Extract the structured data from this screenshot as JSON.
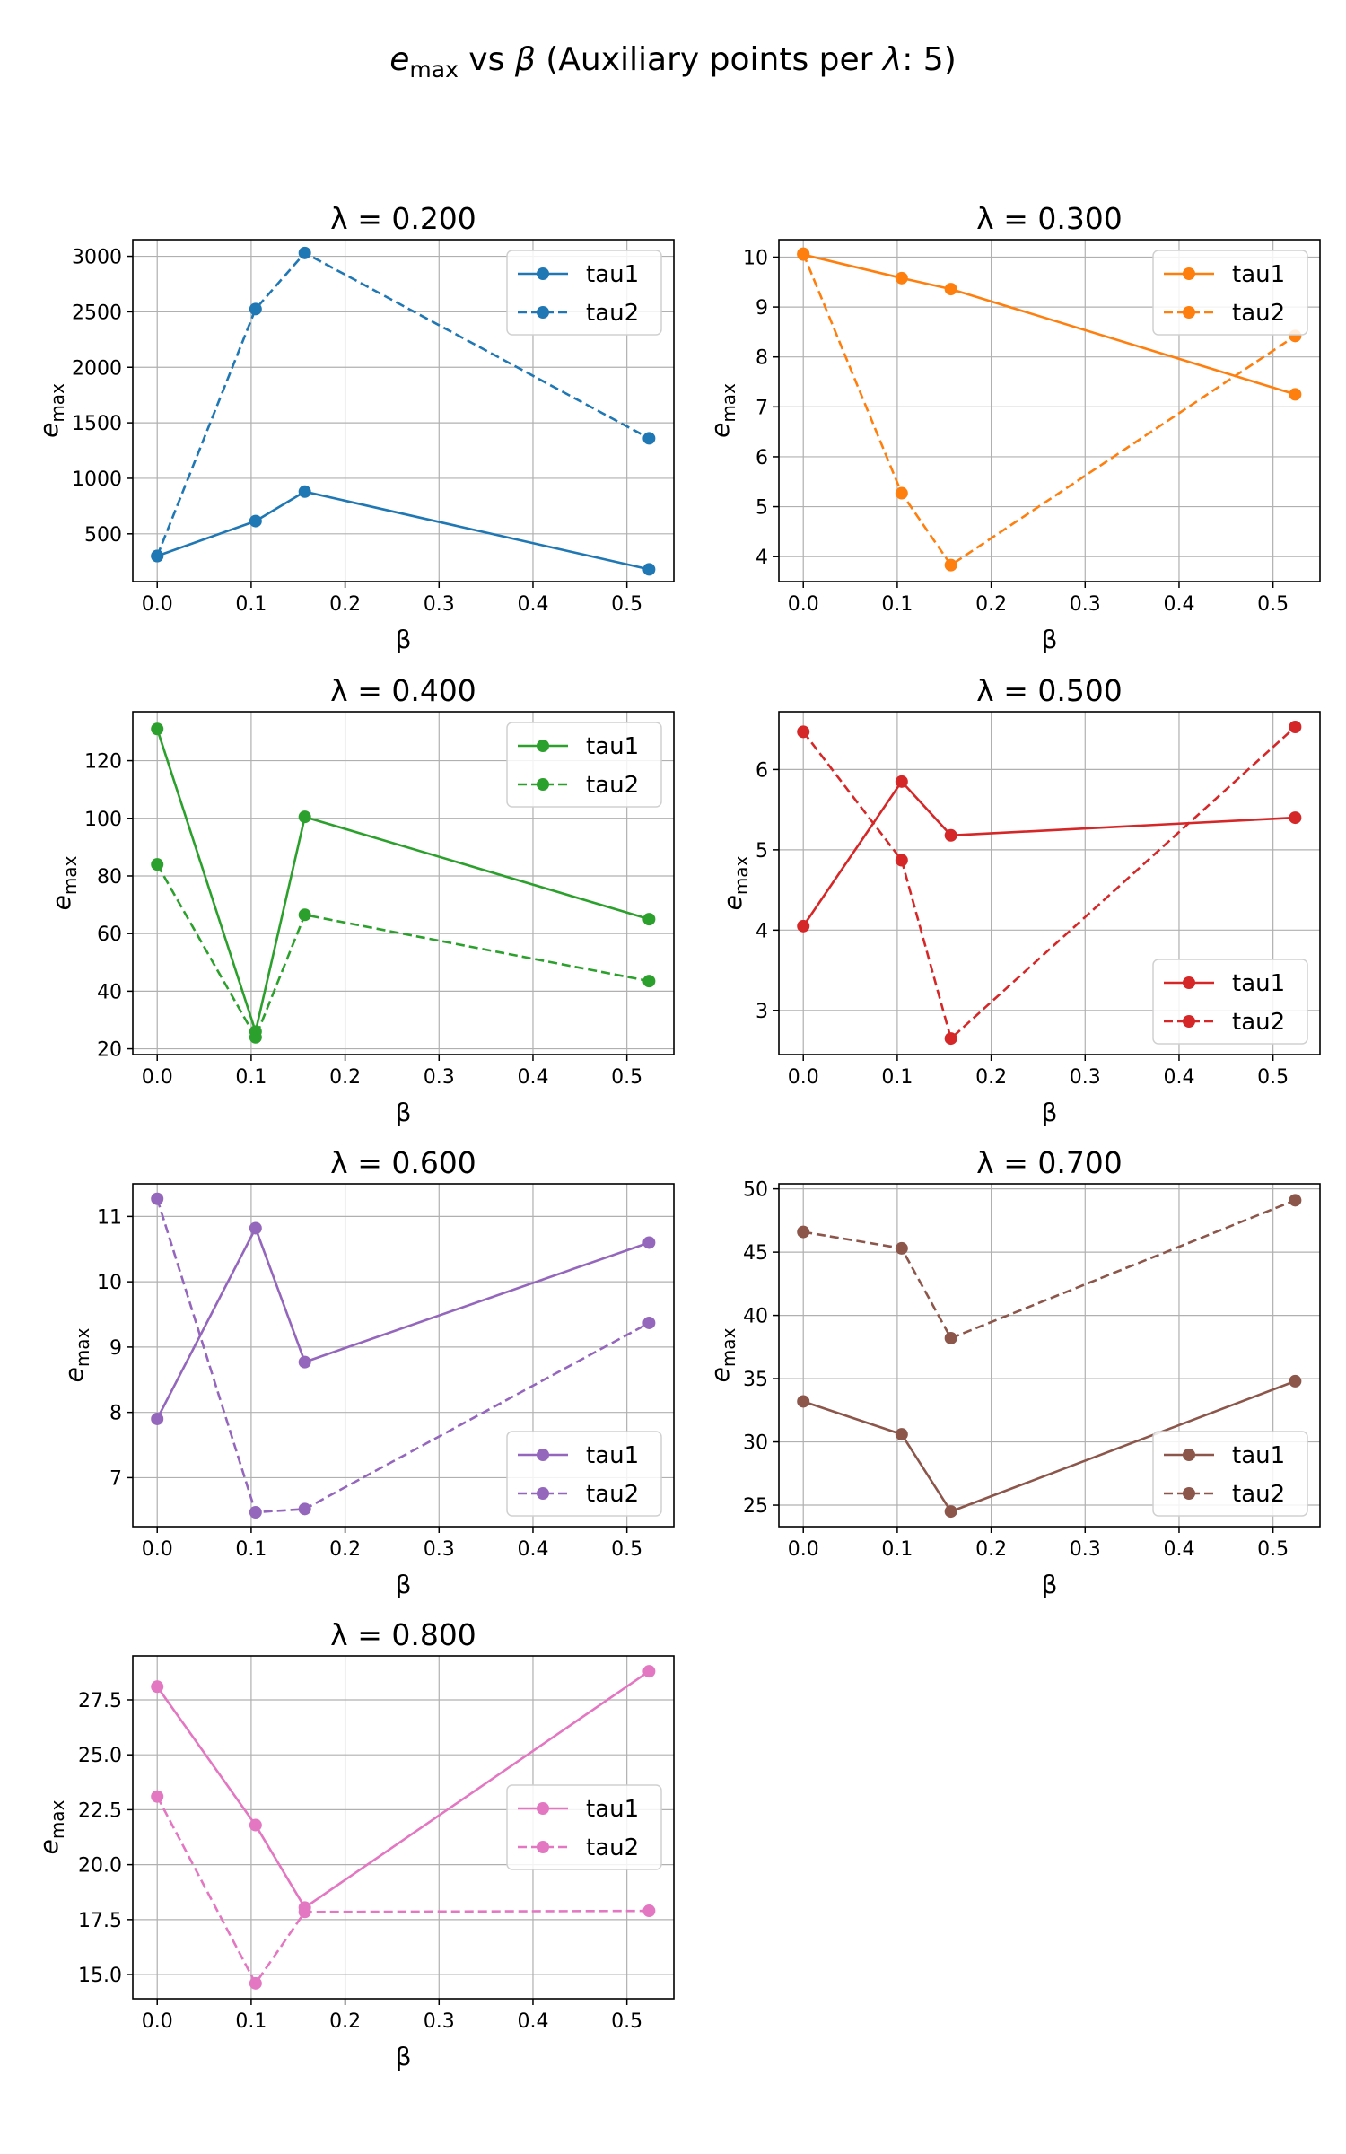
{
  "figure_title": {
    "prefix": "e",
    "sub": "max",
    "mid": " vs ",
    "beta": "β",
    "rest": " (Auxiliary points per ",
    "lambda": "λ",
    "end": ": 5)"
  },
  "chart_data": [
    {
      "type": "line",
      "title": "λ = 0.200",
      "xlabel": "β",
      "ylabel": "e",
      "ylabel_sub": "max",
      "xlim": [
        -0.026,
        0.55
      ],
      "ylim": [
        70,
        3150
      ],
      "xticks": [
        0.0,
        0.1,
        0.2,
        0.3,
        0.4,
        0.5
      ],
      "xtick_labels": [
        "0.0",
        "0.1",
        "0.2",
        "0.3",
        "0.4",
        "0.5"
      ],
      "yticks": [
        500,
        1000,
        1500,
        2000,
        2500,
        3000
      ],
      "ytick_labels": [
        "500",
        "1000",
        "1500",
        "2000",
        "2500",
        "3000"
      ],
      "legend": "upper right",
      "grid": true,
      "color": "#1f77b4",
      "x": [
        0.0,
        0.1047,
        0.1571,
        0.5236
      ],
      "series": [
        {
          "name": "tau1",
          "style": "solid",
          "values": [
            300,
            615,
            880,
            180
          ]
        },
        {
          "name": "tau2",
          "style": "dashed",
          "values": [
            300,
            2525,
            3030,
            1360
          ]
        }
      ]
    },
    {
      "type": "line",
      "title": "λ = 0.300",
      "xlabel": "β",
      "ylabel": "e",
      "ylabel_sub": "max",
      "xlim": [
        -0.026,
        0.55
      ],
      "ylim": [
        3.5,
        10.35
      ],
      "xticks": [
        0.0,
        0.1,
        0.2,
        0.3,
        0.4,
        0.5
      ],
      "xtick_labels": [
        "0.0",
        "0.1",
        "0.2",
        "0.3",
        "0.4",
        "0.5"
      ],
      "yticks": [
        4,
        5,
        6,
        7,
        8,
        9,
        10
      ],
      "ytick_labels": [
        "4",
        "5",
        "6",
        "7",
        "8",
        "9",
        "10"
      ],
      "legend": "upper right",
      "grid": true,
      "color": "#ff7f0e",
      "x": [
        0.0,
        0.1047,
        0.1571,
        0.5236
      ],
      "series": [
        {
          "name": "tau1",
          "style": "solid",
          "values": [
            10.05,
            9.58,
            9.36,
            7.25
          ]
        },
        {
          "name": "tau2",
          "style": "dashed",
          "values": [
            10.07,
            5.27,
            3.83,
            8.42
          ]
        }
      ]
    },
    {
      "type": "line",
      "title": "λ = 0.400",
      "xlabel": "β",
      "ylabel": "e",
      "ylabel_sub": "max",
      "xlim": [
        -0.026,
        0.55
      ],
      "ylim": [
        18,
        137
      ],
      "xticks": [
        0.0,
        0.1,
        0.2,
        0.3,
        0.4,
        0.5
      ],
      "xtick_labels": [
        "0.0",
        "0.1",
        "0.2",
        "0.3",
        "0.4",
        "0.5"
      ],
      "yticks": [
        20,
        40,
        60,
        80,
        100,
        120
      ],
      "ytick_labels": [
        "20",
        "40",
        "60",
        "80",
        "100",
        "120"
      ],
      "legend": "upper right",
      "grid": true,
      "color": "#2ca02c",
      "x": [
        0.0,
        0.1047,
        0.1571,
        0.5236
      ],
      "series": [
        {
          "name": "tau1",
          "style": "solid",
          "values": [
            131,
            26,
            100.5,
            65
          ]
        },
        {
          "name": "tau2",
          "style": "dashed",
          "values": [
            84,
            24,
            66.5,
            43.5
          ]
        }
      ]
    },
    {
      "type": "line",
      "title": "λ = 0.500",
      "xlabel": "β",
      "ylabel": "e",
      "ylabel_sub": "max",
      "xlim": [
        -0.026,
        0.55
      ],
      "ylim": [
        2.45,
        6.72
      ],
      "xticks": [
        0.0,
        0.1,
        0.2,
        0.3,
        0.4,
        0.5
      ],
      "xtick_labels": [
        "0.0",
        "0.1",
        "0.2",
        "0.3",
        "0.4",
        "0.5"
      ],
      "yticks": [
        3,
        4,
        5,
        6
      ],
      "ytick_labels": [
        "3",
        "4",
        "5",
        "6"
      ],
      "legend": "lower right",
      "grid": true,
      "color": "#d62728",
      "x": [
        0.0,
        0.1047,
        0.1571,
        0.5236
      ],
      "series": [
        {
          "name": "tau1",
          "style": "solid",
          "values": [
            4.05,
            5.85,
            5.18,
            5.4
          ]
        },
        {
          "name": "tau2",
          "style": "dashed",
          "values": [
            6.47,
            4.87,
            2.65,
            6.53
          ]
        }
      ]
    },
    {
      "type": "line",
      "title": "λ = 0.600",
      "xlabel": "β",
      "ylabel": "e",
      "ylabel_sub": "max",
      "xlim": [
        -0.026,
        0.55
      ],
      "ylim": [
        6.25,
        11.5
      ],
      "xticks": [
        0.0,
        0.1,
        0.2,
        0.3,
        0.4,
        0.5
      ],
      "xtick_labels": [
        "0.0",
        "0.1",
        "0.2",
        "0.3",
        "0.4",
        "0.5"
      ],
      "yticks": [
        7,
        8,
        9,
        10,
        11
      ],
      "ytick_labels": [
        "7",
        "8",
        "9",
        "10",
        "11"
      ],
      "legend": "lower right",
      "grid": true,
      "color": "#9467bd",
      "x": [
        0.0,
        0.1047,
        0.1571,
        0.5236
      ],
      "series": [
        {
          "name": "tau1",
          "style": "solid",
          "values": [
            7.9,
            10.82,
            8.77,
            10.6
          ]
        },
        {
          "name": "tau2",
          "style": "dashed",
          "values": [
            11.27,
            6.47,
            6.52,
            9.37
          ]
        }
      ]
    },
    {
      "type": "line",
      "title": "λ = 0.700",
      "xlabel": "β",
      "ylabel": "e",
      "ylabel_sub": "max",
      "xlim": [
        -0.026,
        0.55
      ],
      "ylim": [
        23.3,
        50.4
      ],
      "xticks": [
        0.0,
        0.1,
        0.2,
        0.3,
        0.4,
        0.5
      ],
      "xtick_labels": [
        "0.0",
        "0.1",
        "0.2",
        "0.3",
        "0.4",
        "0.5"
      ],
      "yticks": [
        25,
        30,
        35,
        40,
        45,
        50
      ],
      "ytick_labels": [
        "25",
        "30",
        "35",
        "40",
        "45",
        "50"
      ],
      "legend": "lower right",
      "grid": true,
      "color": "#8c564b",
      "x": [
        0.0,
        0.1047,
        0.1571,
        0.5236
      ],
      "series": [
        {
          "name": "tau1",
          "style": "solid",
          "values": [
            33.2,
            30.6,
            24.5,
            34.8
          ]
        },
        {
          "name": "tau2",
          "style": "dashed",
          "values": [
            46.6,
            45.3,
            38.2,
            49.1
          ]
        }
      ]
    },
    {
      "type": "line",
      "title": "λ = 0.800",
      "xlabel": "β",
      "ylabel": "e",
      "ylabel_sub": "max",
      "xlim": [
        -0.026,
        0.55
      ],
      "ylim": [
        13.9,
        29.5
      ],
      "xticks": [
        0.0,
        0.1,
        0.2,
        0.3,
        0.4,
        0.5
      ],
      "xtick_labels": [
        "0.0",
        "0.1",
        "0.2",
        "0.3",
        "0.4",
        "0.5"
      ],
      "yticks": [
        15.0,
        17.5,
        20.0,
        22.5,
        25.0,
        27.5
      ],
      "ytick_labels": [
        "15.0",
        "17.5",
        "20.0",
        "22.5",
        "25.0",
        "27.5"
      ],
      "legend": "center right",
      "grid": true,
      "color": "#e377c2",
      "x": [
        0.0,
        0.1047,
        0.1571,
        0.5236
      ],
      "series": [
        {
          "name": "tau1",
          "style": "solid",
          "values": [
            28.1,
            21.8,
            18.05,
            28.8
          ]
        },
        {
          "name": "tau2",
          "style": "dashed",
          "values": [
            23.1,
            14.6,
            17.85,
            17.9
          ]
        }
      ]
    }
  ]
}
